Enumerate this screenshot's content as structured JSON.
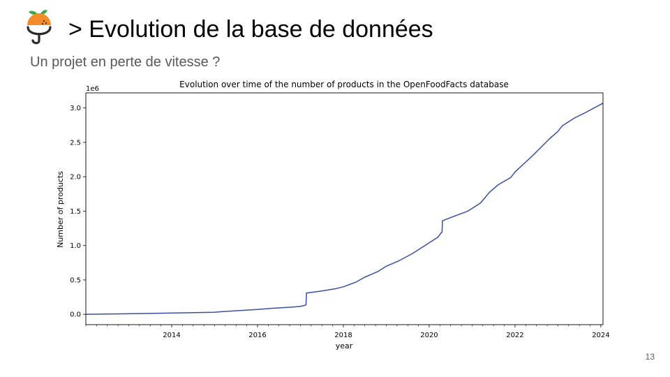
{
  "slide": {
    "title": "> Evolution de la base de données",
    "subtitle": "Un projet en perte de vitesse ?",
    "page_number": "13"
  },
  "colors": {
    "line": "#3b4fa0",
    "logo_orange": "#f28c28",
    "logo_leaf": "#3aa845",
    "logo_dark": "#2b2b2b"
  },
  "chart_data": {
    "type": "line",
    "title": "Evolution over time of the number of products in the OpenFoodFacts database",
    "xlabel": "year",
    "ylabel": "Number of products",
    "y_offset_text": "1e6",
    "xlim": [
      2012.0,
      2024.05
    ],
    "ylim": [
      -0.15,
      3.22
    ],
    "y_unit_multiplier": 1000000,
    "x_ticks": [
      2014,
      2016,
      2018,
      2020,
      2022,
      2024
    ],
    "x_tick_labels": [
      "2014",
      "2016",
      "2018",
      "2020",
      "2022",
      "2024"
    ],
    "y_ticks": [
      0.0,
      0.5,
      1.0,
      1.5,
      2.0,
      2.5,
      3.0
    ],
    "y_tick_labels": [
      "0.0",
      "0.5",
      "1.0",
      "1.5",
      "2.0",
      "2.5",
      "3.0"
    ],
    "minor_x_ticks_per_year": 4,
    "grid": false,
    "legend": "none",
    "series": [
      {
        "x": [
          2012.0,
          2013.0,
          2014.0,
          2015.0,
          2015.2,
          2016.0,
          2016.3,
          2016.8,
          2017.0,
          2017.1,
          2017.13,
          2017.14,
          2017.5,
          2017.8,
          2018.0,
          2018.3,
          2018.5,
          2018.8,
          2019.0,
          2019.3,
          2019.6,
          2019.9,
          2020.0,
          2020.2,
          2020.3,
          2020.31,
          2020.6,
          2020.9,
          2021.0,
          2021.2,
          2021.4,
          2021.6,
          2021.9,
          2022.0,
          2022.4,
          2022.8,
          2023.0,
          2023.1,
          2023.4,
          2023.6,
          2024.05
        ],
        "y": [
          0.0,
          0.008,
          0.018,
          0.03,
          0.04,
          0.07,
          0.085,
          0.105,
          0.115,
          0.13,
          0.14,
          0.31,
          0.34,
          0.37,
          0.4,
          0.47,
          0.54,
          0.62,
          0.7,
          0.78,
          0.88,
          1.0,
          1.04,
          1.12,
          1.2,
          1.36,
          1.43,
          1.5,
          1.54,
          1.62,
          1.77,
          1.88,
          1.99,
          2.07,
          2.3,
          2.55,
          2.66,
          2.74,
          2.86,
          2.92,
          3.07
        ]
      }
    ]
  }
}
